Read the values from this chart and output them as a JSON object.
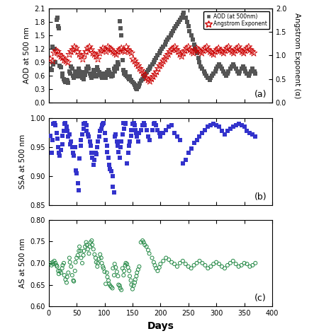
{
  "panel_a": {
    "aod_days": [
      3,
      5,
      7,
      8,
      10,
      12,
      14,
      15,
      17,
      18,
      20,
      22,
      24,
      25,
      27,
      28,
      30,
      32,
      33,
      35,
      37,
      38,
      40,
      42,
      44,
      45,
      47,
      48,
      50,
      52,
      54,
      55,
      57,
      58,
      60,
      62,
      63,
      65,
      67,
      68,
      70,
      72,
      74,
      75,
      77,
      78,
      80,
      82,
      84,
      85,
      87,
      88,
      90,
      92,
      94,
      95,
      97,
      98,
      100,
      102,
      104,
      105,
      107,
      108,
      110,
      112,
      114,
      115,
      117,
      118,
      120,
      122,
      124,
      125,
      127,
      128,
      130,
      132,
      134,
      135,
      137,
      138,
      140,
      142,
      144,
      145,
      147,
      148,
      150,
      152,
      154,
      155,
      157,
      158,
      160,
      162,
      163,
      165,
      168,
      170,
      172,
      175,
      178,
      180,
      182,
      185,
      188,
      190,
      192,
      195,
      198,
      200,
      202,
      205,
      208,
      210,
      212,
      215,
      218,
      220,
      222,
      225,
      228,
      230,
      232,
      235,
      238,
      240,
      242,
      245,
      248,
      250,
      252,
      255,
      258,
      260,
      262,
      265,
      268,
      270,
      272,
      275,
      278,
      280,
      282,
      285,
      288,
      290,
      292,
      295,
      298,
      300,
      302,
      305,
      308,
      310,
      312,
      315,
      318,
      320,
      322,
      325,
      328,
      330,
      332,
      335,
      338,
      340,
      342,
      345,
      348,
      350,
      352,
      355,
      358,
      360,
      362,
      365,
      368,
      370
    ],
    "aod_vals": [
      0.75,
      0.72,
      1.25,
      0.85,
      1.2,
      0.9,
      1.85,
      1.9,
      1.7,
      1.65,
      0.82,
      0.78,
      0.65,
      0.58,
      0.52,
      0.48,
      0.45,
      0.5,
      0.48,
      0.44,
      0.7,
      0.65,
      0.8,
      0.75,
      0.6,
      0.55,
      0.7,
      0.68,
      0.6,
      0.58,
      0.75,
      0.7,
      0.65,
      0.62,
      0.55,
      0.52,
      0.68,
      0.62,
      0.75,
      0.7,
      0.8,
      0.75,
      0.65,
      0.6,
      0.55,
      0.58,
      0.72,
      0.68,
      0.62,
      0.58,
      0.78,
      0.72,
      0.68,
      0.62,
      0.58,
      0.55,
      0.65,
      0.6,
      0.58,
      0.55,
      0.68,
      0.62,
      0.72,
      0.68,
      0.62,
      0.58,
      0.65,
      0.6,
      0.75,
      0.7,
      0.8,
      0.75,
      0.9,
      0.85,
      1.82,
      1.65,
      1.5,
      0.95,
      0.72,
      0.65,
      0.68,
      0.62,
      0.58,
      0.55,
      0.52,
      0.58,
      0.5,
      0.48,
      0.45,
      0.42,
      0.4,
      0.35,
      0.32,
      0.3,
      0.35,
      0.38,
      0.42,
      0.48,
      0.52,
      0.58,
      0.62,
      0.68,
      0.72,
      0.75,
      0.8,
      0.85,
      0.9,
      0.95,
      1.0,
      1.05,
      1.1,
      1.15,
      1.2,
      1.25,
      1.3,
      1.35,
      1.4,
      1.45,
      1.5,
      1.55,
      1.6,
      1.65,
      1.7,
      1.75,
      1.8,
      1.85,
      1.9,
      1.95,
      2.0,
      1.9,
      1.8,
      1.7,
      1.6,
      1.5,
      1.4,
      1.3,
      1.2,
      1.1,
      1.0,
      0.9,
      0.8,
      0.75,
      0.7,
      0.65,
      0.6,
      0.55,
      0.5,
      0.55,
      0.6,
      0.65,
      0.7,
      0.75,
      0.8,
      0.85,
      0.8,
      0.75,
      0.7,
      0.65,
      0.6,
      0.65,
      0.7,
      0.75,
      0.8,
      0.85,
      0.8,
      0.75,
      0.7,
      0.65,
      0.7,
      0.75,
      0.8,
      0.75,
      0.7,
      0.65,
      0.6,
      0.65,
      0.7,
      0.75,
      0.7,
      0.65
    ],
    "ang_days": [
      3,
      7,
      10,
      13,
      16,
      19,
      22,
      25,
      28,
      31,
      34,
      37,
      40,
      43,
      46,
      49,
      52,
      55,
      58,
      61,
      64,
      67,
      70,
      73,
      76,
      79,
      82,
      85,
      88,
      91,
      94,
      97,
      100,
      103,
      106,
      109,
      112,
      115,
      118,
      121,
      124,
      127,
      130,
      133,
      136,
      139,
      142,
      145,
      148,
      151,
      154,
      157,
      160,
      163,
      166,
      169,
      172,
      175,
      178,
      181,
      184,
      187,
      190,
      193,
      196,
      199,
      202,
      205,
      208,
      211,
      214,
      217,
      220,
      223,
      226,
      229,
      232,
      235,
      238,
      241,
      244,
      247,
      250,
      253,
      256,
      259,
      262,
      265,
      268,
      271,
      274,
      277,
      280,
      283,
      286,
      289,
      292,
      295,
      298,
      301,
      304,
      307,
      310,
      313,
      316,
      319,
      322,
      325,
      328,
      331,
      334,
      337,
      340,
      343,
      346,
      349,
      352,
      355,
      358,
      361,
      364,
      367
    ],
    "ang_vals": [
      0.92,
      0.88,
      1.05,
      1.1,
      1.08,
      1.02,
      0.98,
      0.95,
      0.9,
      0.88,
      0.85,
      1.02,
      1.08,
      1.12,
      1.18,
      1.15,
      1.08,
      1.02,
      0.98,
      0.92,
      1.02,
      1.08,
      1.15,
      1.18,
      1.12,
      1.05,
      1.02,
      0.98,
      0.92,
      1.05,
      1.1,
      1.15,
      1.12,
      1.08,
      1.18,
      1.15,
      1.12,
      1.08,
      1.05,
      1.02,
      1.08,
      1.12,
      1.15,
      1.1,
      1.08,
      1.18,
      1.12,
      1.08,
      1.05,
      0.92,
      0.88,
      0.82,
      0.78,
      0.72,
      0.68,
      0.62,
      0.58,
      0.52,
      0.48,
      0.45,
      0.5,
      0.55,
      0.6,
      0.65,
      0.72,
      0.78,
      0.82,
      0.88,
      0.92,
      0.98,
      1.02,
      1.08,
      1.12,
      1.15,
      1.18,
      1.12,
      1.08,
      1.02,
      0.98,
      1.05,
      1.1,
      1.15,
      1.18,
      1.12,
      1.08,
      1.05,
      1.1,
      1.15,
      1.12,
      1.08,
      1.05,
      1.1,
      1.15,
      1.18,
      1.12,
      1.08,
      1.05,
      1.02,
      1.08,
      1.12,
      1.15,
      1.1,
      1.08,
      1.05,
      1.1,
      1.15,
      1.18,
      1.12,
      1.08,
      1.05,
      1.1,
      1.15,
      1.18,
      1.12,
      1.08,
      1.05,
      1.1,
      1.15,
      1.18,
      1.12,
      1.08,
      1.05
    ],
    "aod_color": "#555555",
    "ang_color": "#cc0000",
    "ylim_left": [
      0.0,
      2.1
    ],
    "ylim_right": [
      0.0,
      2.0
    ],
    "yticks_left": [
      0.0,
      0.3,
      0.6,
      0.9,
      1.2,
      1.5,
      1.8,
      2.1
    ],
    "yticks_right": [
      0.0,
      0.5,
      1.0,
      1.5,
      2.0
    ],
    "ylabel_left": "AOD at 500 nm",
    "ylabel_right": "Angstrom Exponent (α)",
    "label_aod": "AOD (at 500nm)",
    "label_ang": "Angstrom Exponent",
    "panel_label": "(a)"
  },
  "panel_b": {
    "days": [
      3,
      5,
      7,
      8,
      10,
      12,
      14,
      15,
      17,
      18,
      20,
      22,
      24,
      25,
      27,
      28,
      30,
      32,
      33,
      35,
      37,
      38,
      40,
      42,
      44,
      45,
      47,
      48,
      50,
      52,
      54,
      55,
      57,
      58,
      60,
      62,
      63,
      65,
      67,
      68,
      70,
      72,
      74,
      75,
      77,
      78,
      80,
      82,
      84,
      85,
      87,
      88,
      90,
      92,
      94,
      95,
      97,
      98,
      100,
      102,
      104,
      105,
      107,
      108,
      110,
      112,
      114,
      115,
      117,
      118,
      120,
      122,
      124,
      125,
      127,
      128,
      130,
      132,
      134,
      135,
      137,
      138,
      140,
      142,
      144,
      145,
      147,
      148,
      150,
      152,
      154,
      155,
      157,
      158,
      160,
      162,
      165,
      168,
      170,
      172,
      175,
      178,
      180,
      185,
      188,
      190,
      192,
      195,
      198,
      200,
      205,
      210,
      215,
      220,
      225,
      230,
      235,
      240,
      245,
      250,
      255,
      260,
      265,
      270,
      275,
      280,
      285,
      290,
      295,
      300,
      305,
      310,
      315,
      320,
      325,
      330,
      335,
      340,
      345,
      350,
      355,
      360,
      365,
      370
    ],
    "vals": [
      0.97,
      0.94,
      0.962,
      0.99,
      0.992,
      0.988,
      0.975,
      0.965,
      0.95,
      0.94,
      0.935,
      0.945,
      0.955,
      0.97,
      0.978,
      0.99,
      0.992,
      0.985,
      0.978,
      0.968,
      0.972,
      0.955,
      0.96,
      0.95,
      0.94,
      0.935,
      0.95,
      0.91,
      0.905,
      0.888,
      0.875,
      0.93,
      0.952,
      0.962,
      0.972,
      0.982,
      0.99,
      0.992,
      0.988,
      0.978,
      0.972,
      0.968,
      0.96,
      0.952,
      0.94,
      0.932,
      0.92,
      0.928,
      0.94,
      0.938,
      0.95,
      0.96,
      0.968,
      0.978,
      0.982,
      0.988,
      0.99,
      0.992,
      0.975,
      0.962,
      0.952,
      0.942,
      0.932,
      0.92,
      0.912,
      0.908,
      0.9,
      0.882,
      0.872,
      0.968,
      0.972,
      0.96,
      0.952,
      0.942,
      0.932,
      0.95,
      0.96,
      0.972,
      0.992,
      0.982,
      0.99,
      0.992,
      0.922,
      0.94,
      0.952,
      0.96,
      0.97,
      0.98,
      0.99,
      0.992,
      0.988,
      0.98,
      0.975,
      0.968,
      0.96,
      0.975,
      0.98,
      0.988,
      0.992,
      0.988,
      0.98,
      0.968,
      0.962,
      0.98,
      0.99,
      0.992,
      0.988,
      0.98,
      0.975,
      0.968,
      0.975,
      0.98,
      0.985,
      0.988,
      0.975,
      0.968,
      0.962,
      0.922,
      0.928,
      0.94,
      0.948,
      0.958,
      0.962,
      0.968,
      0.975,
      0.98,
      0.985,
      0.988,
      0.99,
      0.988,
      0.985,
      0.978,
      0.972,
      0.978,
      0.982,
      0.985,
      0.988,
      0.99,
      0.988,
      0.985,
      0.978,
      0.975,
      0.972,
      0.968
    ],
    "color": "#3333cc",
    "ylim": [
      0.85,
      1.0
    ],
    "yticks": [
      0.85,
      0.9,
      0.95,
      1.0
    ],
    "ylabel": "SSA at 500 nm",
    "panel_label": "(b)"
  },
  "panel_c": {
    "days": [
      3,
      5,
      7,
      8,
      10,
      12,
      14,
      15,
      17,
      18,
      20,
      22,
      24,
      25,
      27,
      28,
      30,
      32,
      33,
      35,
      37,
      38,
      40,
      42,
      44,
      45,
      47,
      48,
      50,
      52,
      54,
      55,
      57,
      58,
      60,
      62,
      63,
      65,
      67,
      68,
      70,
      72,
      74,
      75,
      77,
      78,
      80,
      82,
      84,
      85,
      87,
      88,
      90,
      92,
      94,
      95,
      97,
      98,
      100,
      102,
      104,
      105,
      107,
      108,
      110,
      112,
      114,
      115,
      117,
      118,
      120,
      122,
      124,
      125,
      127,
      128,
      130,
      132,
      134,
      135,
      137,
      138,
      140,
      142,
      144,
      145,
      147,
      148,
      150,
      152,
      154,
      155,
      157,
      158,
      160,
      162,
      165,
      168,
      170,
      172,
      175,
      178,
      180,
      185,
      188,
      190,
      192,
      195,
      198,
      200,
      205,
      210,
      215,
      220,
      225,
      230,
      235,
      240,
      245,
      250,
      255,
      260,
      265,
      270,
      275,
      280,
      285,
      290,
      295,
      300,
      305,
      310,
      315,
      320,
      325,
      330,
      335,
      340,
      345,
      350,
      355,
      360,
      365,
      370
    ],
    "vals": [
      0.7,
      0.695,
      0.702,
      0.698,
      0.705,
      0.7,
      0.695,
      0.692,
      0.682,
      0.675,
      0.682,
      0.678,
      0.688,
      0.695,
      0.7,
      0.672,
      0.662,
      0.655,
      0.668,
      0.678,
      0.712,
      0.702,
      0.692,
      0.672,
      0.66,
      0.658,
      0.682,
      0.702,
      0.712,
      0.718,
      0.728,
      0.738,
      0.728,
      0.712,
      0.7,
      0.718,
      0.728,
      0.738,
      0.748,
      0.742,
      0.732,
      0.722,
      0.738,
      0.748,
      0.752,
      0.742,
      0.732,
      0.72,
      0.712,
      0.702,
      0.692,
      0.7,
      0.71,
      0.72,
      0.712,
      0.7,
      0.692,
      0.688,
      0.68,
      0.652,
      0.678,
      0.668,
      0.66,
      0.652,
      0.648,
      0.645,
      0.642,
      0.688,
      0.672,
      0.698,
      0.69,
      0.68,
      0.67,
      0.65,
      0.648,
      0.642,
      0.638,
      0.688,
      0.672,
      0.682,
      0.695,
      0.7,
      0.698,
      0.69,
      0.682,
      0.67,
      0.66,
      0.65,
      0.64,
      0.648,
      0.655,
      0.662,
      0.67,
      0.678,
      0.685,
      0.692,
      0.748,
      0.752,
      0.748,
      0.742,
      0.738,
      0.73,
      0.722,
      0.712,
      0.702,
      0.695,
      0.688,
      0.682,
      0.69,
      0.698,
      0.705,
      0.712,
      0.708,
      0.702,
      0.698,
      0.692,
      0.7,
      0.705,
      0.698,
      0.692,
      0.688,
      0.695,
      0.7,
      0.705,
      0.7,
      0.695,
      0.688,
      0.692,
      0.698,
      0.702,
      0.698,
      0.692,
      0.688,
      0.695,
      0.7,
      0.705,
      0.698,
      0.692,
      0.695,
      0.7,
      0.698,
      0.692,
      0.695,
      0.7
    ],
    "color": "#228844",
    "ylim": [
      0.6,
      0.8
    ],
    "yticks": [
      0.6,
      0.65,
      0.7,
      0.75,
      0.8
    ],
    "ylabel": "AS at 500 nm",
    "panel_label": "(c)"
  },
  "xlim": [
    0,
    400
  ],
  "xticks": [
    0,
    50,
    100,
    150,
    200,
    250,
    300,
    350,
    400
  ],
  "xlabel": "Days",
  "figure_size": [
    4.74,
    4.75
  ],
  "dpi": 100
}
